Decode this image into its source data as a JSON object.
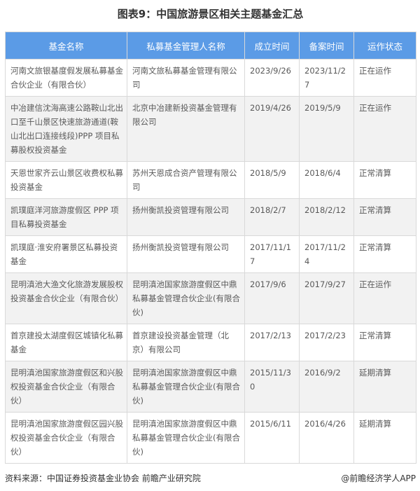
{
  "title": "图表9：中国旅游景区相关主题基金汇总",
  "columns": [
    "基金名称",
    "私募基金管理人名称",
    "成立时间",
    "备案时间",
    "运作状态"
  ],
  "rows": [
    [
      "河南文旅银基度假发展私募基金合伙企业（有限合伙）",
      "河南文旅私募基金管理有限公司",
      "2023/9/26",
      "2023/11/27",
      "正在运作"
    ],
    [
      "中冶建信沈海高速公路鞍山北出口至千山景区快速旅游通道(鞍山北出口连接线段)PPP 项目私募股权投资基金",
      "北京中冶建新投资基金管理有限公司",
      "2019/4/26",
      "2019/5/9",
      "正在运作"
    ],
    [
      "天恩世家齐云山景区收费权私募投资基金",
      "苏州天恩成合资产管理有限公司",
      "2018/5/9",
      "2018/6/4",
      "正常清算"
    ],
    [
      "凯璞庭洋河旅游度假区 PPP 项目私募投资基金",
      "扬州衡凯投资管理有限公司",
      "2018/2/7",
      "2018/2/12",
      "正常清算"
    ],
    [
      "凯璞庭·淮安府署景区私募投资基金",
      "扬州衡凯投资管理有限公司",
      "2017/11/17",
      "2017/11/24",
      "正常清算"
    ],
    [
      "昆明滇池大渔文化旅游发展股权投资基金合伙企业（有限合伙）",
      "昆明滇池国家旅游度假区中鼎私募基金管理合伙企业(有限合伙)",
      "2017/9/6",
      "2017/9/27",
      "正在运作"
    ],
    [
      "首京建投太湖度假区城镇化私募基金",
      "首京建设投资基金管理（北京）有限公司",
      "2017/2/13",
      "2017/2/23",
      "正常清算"
    ],
    [
      "昆明滇池国家旅游度假区和兴股权投资基金合伙企业（有限合伙）",
      "昆明滇池国家旅游度假区中鼎私募基金管理合伙企业(有限合伙)",
      "2015/11/30",
      "2016/9/2",
      "延期清算"
    ],
    [
      "昆明滇池国家旅游度假区园兴股权投资基金合伙企业（有限合伙）",
      "昆明滇池国家旅游度假区中鼎私募基金管理合伙企业(有限合伙)",
      "2015/6/11",
      "2016/4/26",
      "延期清算"
    ]
  ],
  "footer": {
    "source": "资料来源：中国证券投资基金业协会  前瞻产业研究院",
    "brand": "@前瞻经济学人APP"
  },
  "colors": {
    "header": "#5b9be6",
    "alt_row": "#f2f2f2"
  }
}
